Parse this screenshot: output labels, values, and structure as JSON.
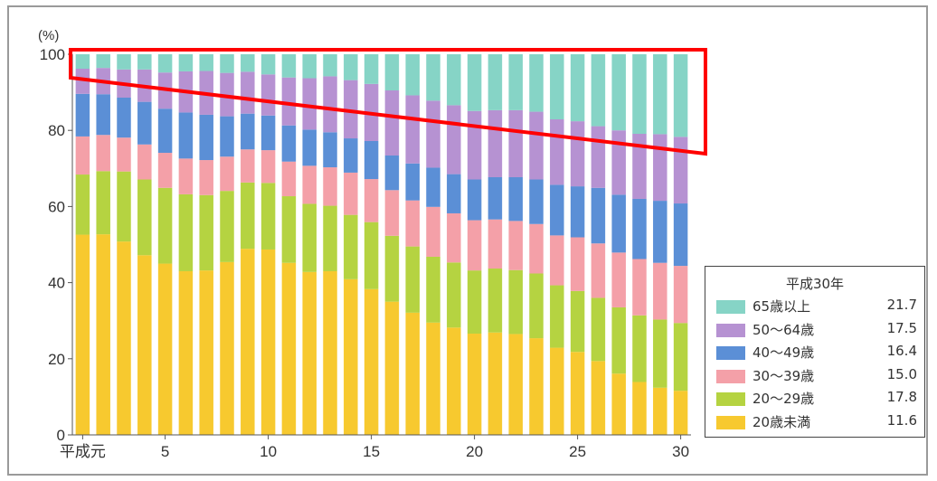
{
  "unit_label": "(%)",
  "highlight_color": "#ff0000",
  "chart_data": {
    "type": "bar",
    "stacked": true,
    "ylim": [
      0,
      100
    ],
    "yticks": [
      0,
      20,
      40,
      60,
      80,
      100
    ],
    "x": [
      1,
      2,
      3,
      4,
      5,
      6,
      7,
      8,
      9,
      10,
      11,
      12,
      13,
      14,
      15,
      16,
      17,
      18,
      19,
      20,
      21,
      22,
      23,
      24,
      25,
      26,
      27,
      28,
      29,
      30
    ],
    "xticks": [
      {
        "x": 1,
        "label": "平成元"
      },
      {
        "x": 5,
        "label": "5"
      },
      {
        "x": 10,
        "label": "10"
      },
      {
        "x": 15,
        "label": "15"
      },
      {
        "x": 20,
        "label": "20"
      },
      {
        "x": 25,
        "label": "25"
      },
      {
        "x": 30,
        "label": "30"
      }
    ],
    "series": [
      {
        "name": "20歳未満",
        "color": "#f7c92f",
        "values": [
          52.6,
          52.7,
          50.8,
          47.2,
          45.0,
          43.0,
          43.2,
          45.4,
          48.9,
          48.7,
          45.2,
          42.8,
          43.0,
          40.9,
          38.3,
          35.0,
          32.1,
          29.5,
          28.2,
          26.6,
          26.9,
          26.5,
          25.4,
          22.9,
          21.8,
          19.4,
          16.1,
          13.9,
          12.4,
          11.6
        ]
      },
      {
        "name": "20〜29歳",
        "color": "#b5d341",
        "values": [
          15.8,
          16.6,
          18.4,
          19.9,
          19.9,
          20.2,
          19.8,
          18.7,
          17.4,
          17.5,
          17.5,
          17.9,
          17.2,
          16.9,
          17.6,
          17.3,
          17.4,
          17.3,
          17.1,
          16.6,
          16.8,
          16.8,
          17.0,
          16.4,
          16.0,
          16.6,
          17.4,
          17.5,
          17.9,
          17.8
        ]
      },
      {
        "name": "30〜39歳",
        "color": "#f4a0a8",
        "values": [
          10.0,
          9.5,
          8.9,
          9.2,
          9.2,
          9.4,
          9.2,
          9.0,
          8.7,
          8.6,
          9.1,
          10.0,
          10.1,
          11.1,
          11.3,
          12.0,
          12.1,
          13.1,
          12.9,
          13.2,
          12.9,
          12.9,
          13.0,
          13.1,
          14.1,
          14.3,
          14.4,
          14.8,
          14.9,
          15.0
        ]
      },
      {
        "name": "40〜49歳",
        "color": "#5b8fd6",
        "values": [
          11.2,
          10.7,
          10.5,
          11.2,
          11.6,
          12.1,
          11.9,
          10.6,
          9.4,
          9.1,
          9.5,
          9.5,
          9.2,
          9.0,
          10.0,
          9.1,
          9.7,
          10.3,
          10.3,
          10.7,
          11.1,
          11.5,
          11.7,
          13.3,
          13.4,
          14.6,
          15.2,
          15.8,
          16.3,
          16.4
        ]
      },
      {
        "name": "50〜64歳",
        "color": "#b692d2",
        "values": [
          6.6,
          6.9,
          7.4,
          8.5,
          9.5,
          10.8,
          11.5,
          11.4,
          11.0,
          10.8,
          12.6,
          13.5,
          14.7,
          15.3,
          15.0,
          17.1,
          17.9,
          17.6,
          18.1,
          18.0,
          17.6,
          17.6,
          17.8,
          17.2,
          17.1,
          16.2,
          16.9,
          17.1,
          17.5,
          17.5
        ]
      },
      {
        "name": "65歳以上",
        "color": "#86d4c6",
        "values": [
          3.8,
          3.6,
          4.0,
          4.0,
          4.8,
          4.5,
          4.4,
          4.9,
          4.6,
          5.3,
          6.1,
          6.3,
          5.8,
          6.8,
          7.8,
          9.5,
          10.8,
          12.2,
          13.4,
          14.9,
          14.7,
          14.7,
          15.1,
          17.1,
          17.6,
          18.9,
          20.0,
          20.9,
          21.0,
          21.7
        ]
      }
    ],
    "legend": {
      "title": "平成30年",
      "position": "bottom-right",
      "items": [
        {
          "label": "65歳以上",
          "value": "21.7",
          "color": "#86d4c6"
        },
        {
          "label": "50〜64歳",
          "value": "17.5",
          "color": "#b692d2"
        },
        {
          "label": "40〜49歳",
          "value": "16.4",
          "color": "#5b8fd6"
        },
        {
          "label": "30〜39歳",
          "value": "15.0",
          "color": "#f4a0a8"
        },
        {
          "label": "20〜29歳",
          "value": "17.8",
          "color": "#b5d341"
        },
        {
          "label": "20歳未満",
          "value": "11.6",
          "color": "#f7c92f"
        }
      ]
    },
    "grid": false
  }
}
